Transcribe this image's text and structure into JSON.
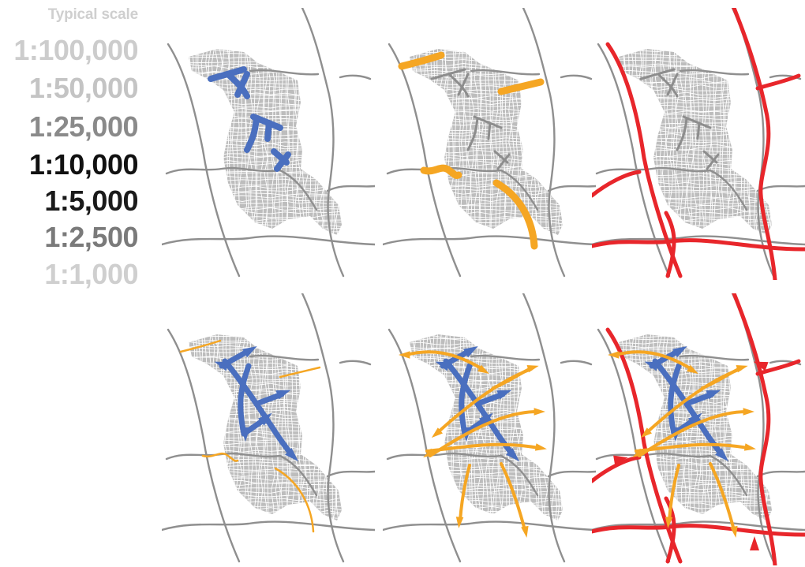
{
  "legend": {
    "title": "Typical scale",
    "scales": [
      {
        "label": "1:100,000",
        "color": "#cccccc"
      },
      {
        "label": "1:50,000",
        "color": "#c4c4c4"
      },
      {
        "label": "1:25,000",
        "color": "#8a8a8a"
      },
      {
        "label": "1:10,000",
        "color": "#111111"
      },
      {
        "label": "1:5,000",
        "color": "#1a1a1a"
      },
      {
        "label": "1:2,500",
        "color": "#7a7a7a"
      },
      {
        "label": "1:1,000",
        "color": "#cfcfcf"
      }
    ]
  },
  "colors": {
    "urban_fabric": "#bdbdbd",
    "urban_streets": "#ffffff",
    "roads": "#8f8f8f",
    "local_streets": "#4a6fbf",
    "district_connectors": "#f5a623",
    "regional_routes": "#e8262b"
  },
  "panels": [
    {
      "name": "local-street-network",
      "layers": [
        "local"
      ]
    },
    {
      "name": "district-connectors",
      "layers": [
        "district"
      ]
    },
    {
      "name": "regional-routes",
      "layers": [
        "regional"
      ]
    },
    {
      "name": "local-movement-directions",
      "layers": [
        "local-arrows"
      ]
    },
    {
      "name": "combined-local-district",
      "layers": [
        "local-arrows",
        "district-arrows"
      ]
    },
    {
      "name": "combined-all-levels",
      "layers": [
        "local-arrows",
        "district-arrows",
        "regional"
      ]
    }
  ]
}
